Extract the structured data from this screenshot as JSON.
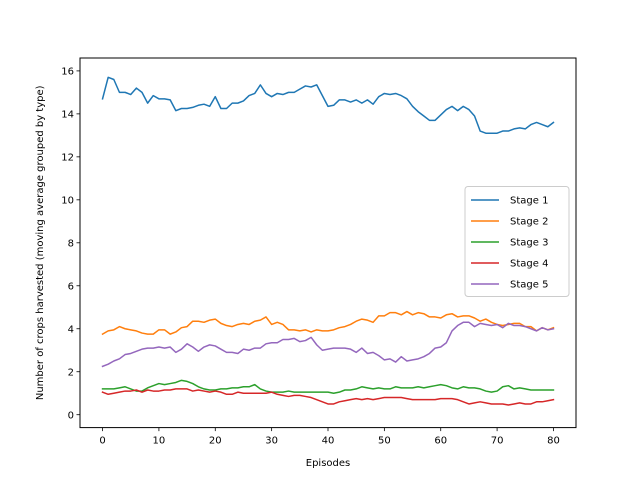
{
  "chart_data": {
    "type": "line",
    "title": "",
    "xlabel": "Episodes",
    "ylabel": "Number of crops harvested (moving average grouped by type)",
    "xlim": [
      -4,
      84
    ],
    "ylim": [
      -0.6,
      16.6
    ],
    "xticks": [
      0,
      10,
      20,
      30,
      40,
      50,
      60,
      70,
      80
    ],
    "yticks": [
      0,
      2,
      4,
      6,
      8,
      10,
      12,
      14,
      16
    ],
    "grid": false,
    "legend_position": "center-right",
    "series": [
      {
        "name": "Stage 1",
        "color": "#1f77b4",
        "values": [
          14.7,
          15.7,
          15.6,
          15.0,
          15.0,
          14.9,
          15.2,
          15.0,
          14.5,
          14.85,
          14.7,
          14.7,
          14.65,
          14.15,
          14.25,
          14.25,
          14.3,
          14.4,
          14.45,
          14.35,
          14.8,
          14.25,
          14.25,
          14.5,
          14.5,
          14.6,
          14.85,
          14.95,
          15.35,
          14.95,
          14.8,
          14.95,
          14.9,
          15.0,
          15.0,
          15.15,
          15.3,
          15.25,
          15.35,
          14.85,
          14.35,
          14.4,
          14.65,
          14.65,
          14.55,
          14.65,
          14.5,
          14.65,
          14.45,
          14.8,
          14.95,
          14.9,
          14.95,
          14.85,
          14.7,
          14.35,
          14.1,
          13.9,
          13.7,
          13.7,
          13.95,
          14.2,
          14.35,
          14.15,
          14.35,
          14.2,
          13.9,
          13.2,
          13.1,
          13.1,
          13.1,
          13.2,
          13.2,
          13.3,
          13.35,
          13.3,
          13.5,
          13.6,
          13.5,
          13.4,
          13.6
        ]
      },
      {
        "name": "Stage 2",
        "color": "#ff7f0e",
        "values": [
          3.75,
          3.9,
          3.95,
          4.1,
          4.0,
          3.95,
          3.9,
          3.8,
          3.75,
          3.75,
          3.95,
          3.95,
          3.75,
          3.85,
          4.05,
          4.1,
          4.35,
          4.35,
          4.3,
          4.4,
          4.45,
          4.25,
          4.15,
          4.1,
          4.2,
          4.25,
          4.2,
          4.35,
          4.4,
          4.55,
          4.2,
          4.3,
          4.2,
          3.95,
          3.95,
          3.9,
          3.95,
          3.85,
          3.95,
          3.9,
          3.9,
          3.95,
          4.05,
          4.1,
          4.2,
          4.35,
          4.45,
          4.4,
          4.3,
          4.6,
          4.6,
          4.75,
          4.75,
          4.65,
          4.8,
          4.65,
          4.75,
          4.7,
          4.55,
          4.55,
          4.5,
          4.65,
          4.7,
          4.55,
          4.6,
          4.6,
          4.5,
          4.35,
          4.45,
          4.3,
          4.2,
          4.15,
          4.2,
          4.25,
          4.25,
          4.1,
          4.1,
          3.9,
          4.05,
          3.95,
          4.05
        ]
      },
      {
        "name": "Stage 3",
        "color": "#2ca02c",
        "values": [
          1.2,
          1.2,
          1.2,
          1.25,
          1.3,
          1.2,
          1.1,
          1.1,
          1.25,
          1.35,
          1.45,
          1.4,
          1.45,
          1.5,
          1.6,
          1.55,
          1.45,
          1.3,
          1.2,
          1.15,
          1.15,
          1.2,
          1.2,
          1.25,
          1.25,
          1.3,
          1.3,
          1.4,
          1.2,
          1.1,
          1.05,
          1.05,
          1.05,
          1.1,
          1.05,
          1.05,
          1.05,
          1.05,
          1.05,
          1.05,
          1.05,
          1.0,
          1.05,
          1.15,
          1.15,
          1.2,
          1.3,
          1.25,
          1.2,
          1.25,
          1.2,
          1.2,
          1.3,
          1.25,
          1.25,
          1.25,
          1.3,
          1.25,
          1.3,
          1.35,
          1.4,
          1.35,
          1.25,
          1.2,
          1.3,
          1.25,
          1.25,
          1.2,
          1.1,
          1.05,
          1.1,
          1.3,
          1.35,
          1.2,
          1.25,
          1.2,
          1.15,
          1.15,
          1.15,
          1.15,
          1.15
        ]
      },
      {
        "name": "Stage 4",
        "color": "#d62728",
        "values": [
          1.05,
          0.95,
          1.0,
          1.05,
          1.1,
          1.1,
          1.15,
          1.05,
          1.15,
          1.1,
          1.1,
          1.15,
          1.15,
          1.2,
          1.2,
          1.2,
          1.1,
          1.15,
          1.1,
          1.05,
          1.1,
          1.05,
          0.95,
          0.95,
          1.05,
          1.0,
          1.0,
          1.0,
          1.0,
          1.0,
          1.05,
          0.95,
          0.9,
          0.85,
          0.9,
          0.9,
          0.85,
          0.8,
          0.7,
          0.6,
          0.5,
          0.5,
          0.6,
          0.65,
          0.7,
          0.75,
          0.7,
          0.75,
          0.7,
          0.75,
          0.8,
          0.8,
          0.8,
          0.8,
          0.75,
          0.7,
          0.7,
          0.7,
          0.7,
          0.7,
          0.75,
          0.75,
          0.75,
          0.7,
          0.6,
          0.5,
          0.55,
          0.6,
          0.55,
          0.5,
          0.5,
          0.5,
          0.45,
          0.5,
          0.55,
          0.5,
          0.5,
          0.6,
          0.6,
          0.65,
          0.7
        ]
      },
      {
        "name": "Stage 5",
        "color": "#9467bd",
        "values": [
          2.25,
          2.35,
          2.5,
          2.6,
          2.8,
          2.85,
          2.95,
          3.05,
          3.1,
          3.1,
          3.15,
          3.1,
          3.15,
          2.9,
          3.05,
          3.3,
          3.15,
          2.95,
          3.15,
          3.25,
          3.2,
          3.05,
          2.9,
          2.9,
          2.85,
          3.05,
          3.0,
          3.1,
          3.1,
          3.3,
          3.35,
          3.35,
          3.5,
          3.5,
          3.55,
          3.4,
          3.45,
          3.6,
          3.25,
          3.0,
          3.05,
          3.1,
          3.1,
          3.1,
          3.05,
          2.9,
          3.1,
          2.85,
          2.9,
          2.75,
          2.55,
          2.6,
          2.45,
          2.7,
          2.5,
          2.55,
          2.6,
          2.7,
          2.85,
          3.1,
          3.15,
          3.35,
          3.9,
          4.15,
          4.3,
          4.3,
          4.1,
          4.25,
          4.2,
          4.15,
          4.2,
          4.05,
          4.25,
          4.15,
          4.15,
          4.1,
          4.0,
          3.9,
          4.05,
          3.95,
          4.0
        ]
      }
    ]
  }
}
